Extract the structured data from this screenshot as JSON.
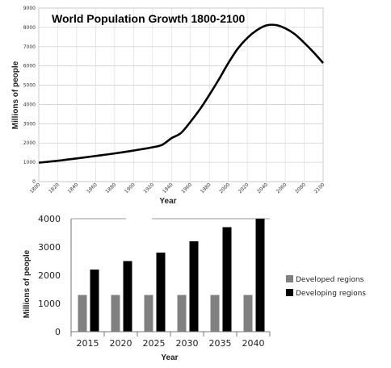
{
  "chart_data": [
    {
      "type": "line",
      "title": "World Population Growth 1800-2100",
      "xlabel": "Year",
      "ylabel": "Millions of people",
      "xlim": [
        1800,
        2100
      ],
      "ylim": [
        0,
        9000
      ],
      "x_ticks": [
        1800,
        1820,
        1840,
        1860,
        1880,
        1900,
        1920,
        1940,
        1960,
        1980,
        2000,
        2020,
        2040,
        2060,
        2080,
        2100
      ],
      "y_ticks": [
        0,
        1000,
        2000,
        3000,
        4000,
        5000,
        6000,
        7000,
        8000,
        9000
      ],
      "grid": true,
      "series": [
        {
          "x": [
            1800,
            1820,
            1840,
            1860,
            1880,
            1900,
            1920,
            1930,
            1940,
            1950,
            1960,
            1970,
            1980,
            1990,
            2000,
            2010,
            2020,
            2030,
            2040,
            2050,
            2060,
            2070,
            2080,
            2090,
            2100
          ],
          "y": [
            980,
            1080,
            1200,
            1330,
            1460,
            1610,
            1780,
            1900,
            2250,
            2520,
            3100,
            3750,
            4500,
            5300,
            6150,
            6900,
            7450,
            7850,
            8100,
            8120,
            7950,
            7650,
            7200,
            6700,
            6150
          ]
        }
      ]
    },
    {
      "type": "bar",
      "xlabel": "Year",
      "ylabel": "Millions of people",
      "categories": [
        "2015",
        "2020",
        "2025",
        "2030",
        "2035",
        "2040"
      ],
      "ylim": [
        0,
        4000
      ],
      "y_ticks": [
        0,
        1000,
        2000,
        3000,
        4000
      ],
      "legend_position": "right",
      "series": [
        {
          "name": "Developed regions",
          "color": "#808080",
          "values": [
            1300,
            1300,
            1300,
            1300,
            1300,
            1300
          ]
        },
        {
          "name": "Developing regions",
          "color": "#000000",
          "values": [
            2200,
            2500,
            2800,
            3200,
            3700,
            4000
          ]
        }
      ]
    }
  ]
}
